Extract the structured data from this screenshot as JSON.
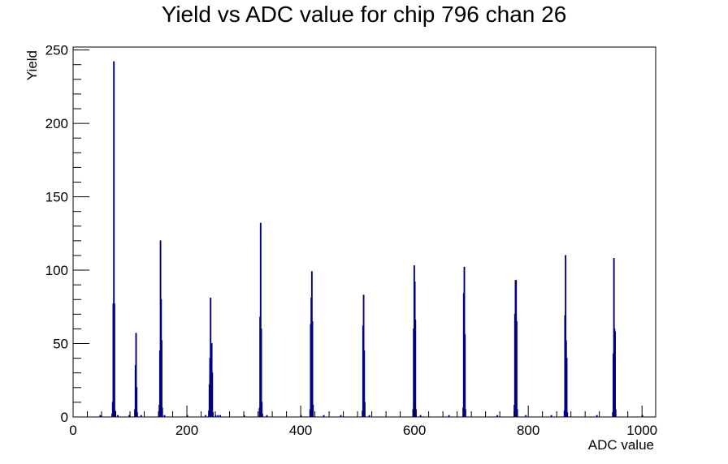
{
  "chart_data": {
    "type": "histogram",
    "title": "Yield vs ADC value for chip 796 chan 26",
    "xlabel": "ADC value",
    "ylabel": "Yield",
    "xlim": [
      0,
      1024
    ],
    "ylim": [
      0,
      252
    ],
    "x_ticks": [
      0,
      200,
      400,
      600,
      800,
      1000
    ],
    "y_ticks": [
      0,
      50,
      100,
      150,
      200,
      250
    ],
    "grid": false,
    "line_color": "#000080",
    "series": [
      {
        "bins": [
          [
            68,
            2
          ],
          [
            69,
            10
          ],
          [
            70,
            77
          ],
          [
            71,
            242
          ],
          [
            72,
            77
          ],
          [
            73,
            4
          ],
          [
            108,
            5
          ],
          [
            109,
            35
          ],
          [
            110,
            57
          ],
          [
            111,
            20
          ],
          [
            112,
            3
          ],
          [
            151,
            8
          ],
          [
            152,
            45
          ],
          [
            153,
            120
          ],
          [
            154,
            80
          ],
          [
            155,
            52
          ],
          [
            156,
            6
          ],
          [
            238,
            4
          ],
          [
            239,
            22
          ],
          [
            240,
            40
          ],
          [
            241,
            81
          ],
          [
            242,
            47
          ],
          [
            243,
            50
          ],
          [
            244,
            30
          ],
          [
            245,
            3
          ],
          [
            327,
            6
          ],
          [
            328,
            68
          ],
          [
            329,
            132
          ],
          [
            330,
            60
          ],
          [
            331,
            10
          ],
          [
            332,
            2
          ],
          [
            416,
            5
          ],
          [
            417,
            63
          ],
          [
            418,
            81
          ],
          [
            419,
            99
          ],
          [
            420,
            65
          ],
          [
            421,
            8
          ],
          [
            508,
            4
          ],
          [
            509,
            62
          ],
          [
            510,
            83
          ],
          [
            511,
            45
          ],
          [
            512,
            10
          ],
          [
            597,
            5
          ],
          [
            598,
            60
          ],
          [
            599,
            103
          ],
          [
            600,
            92
          ],
          [
            601,
            66
          ],
          [
            602,
            5
          ],
          [
            685,
            6
          ],
          [
            686,
            84
          ],
          [
            687,
            102
          ],
          [
            688,
            56
          ],
          [
            689,
            5
          ],
          [
            775,
            8
          ],
          [
            776,
            70
          ],
          [
            777,
            93
          ],
          [
            778,
            93
          ],
          [
            779,
            65
          ],
          [
            780,
            5
          ],
          [
            863,
            4
          ],
          [
            864,
            69
          ],
          [
            865,
            110
          ],
          [
            866,
            52
          ],
          [
            867,
            40
          ],
          [
            868,
            3
          ],
          [
            948,
            3
          ],
          [
            949,
            43
          ],
          [
            950,
            108
          ],
          [
            951,
            60
          ],
          [
            952,
            58
          ],
          [
            953,
            5
          ],
          [
            47,
            1
          ],
          [
            78,
            1
          ],
          [
            98,
            1
          ],
          [
            119,
            1
          ],
          [
            160,
            1
          ],
          [
            200,
            1
          ],
          [
            232,
            1
          ],
          [
            250,
            1
          ],
          [
            254,
            1
          ],
          [
            258,
            1
          ],
          [
            300,
            1
          ],
          [
            340,
            1
          ],
          [
            400,
            1
          ],
          [
            440,
            1
          ],
          [
            470,
            1
          ],
          [
            520,
            1
          ],
          [
            610,
            1
          ],
          [
            660,
            1
          ],
          [
            745,
            1
          ],
          [
            795,
            1
          ],
          [
            840,
            1
          ],
          [
            920,
            1
          ],
          [
            1000,
            1
          ]
        ]
      }
    ]
  }
}
